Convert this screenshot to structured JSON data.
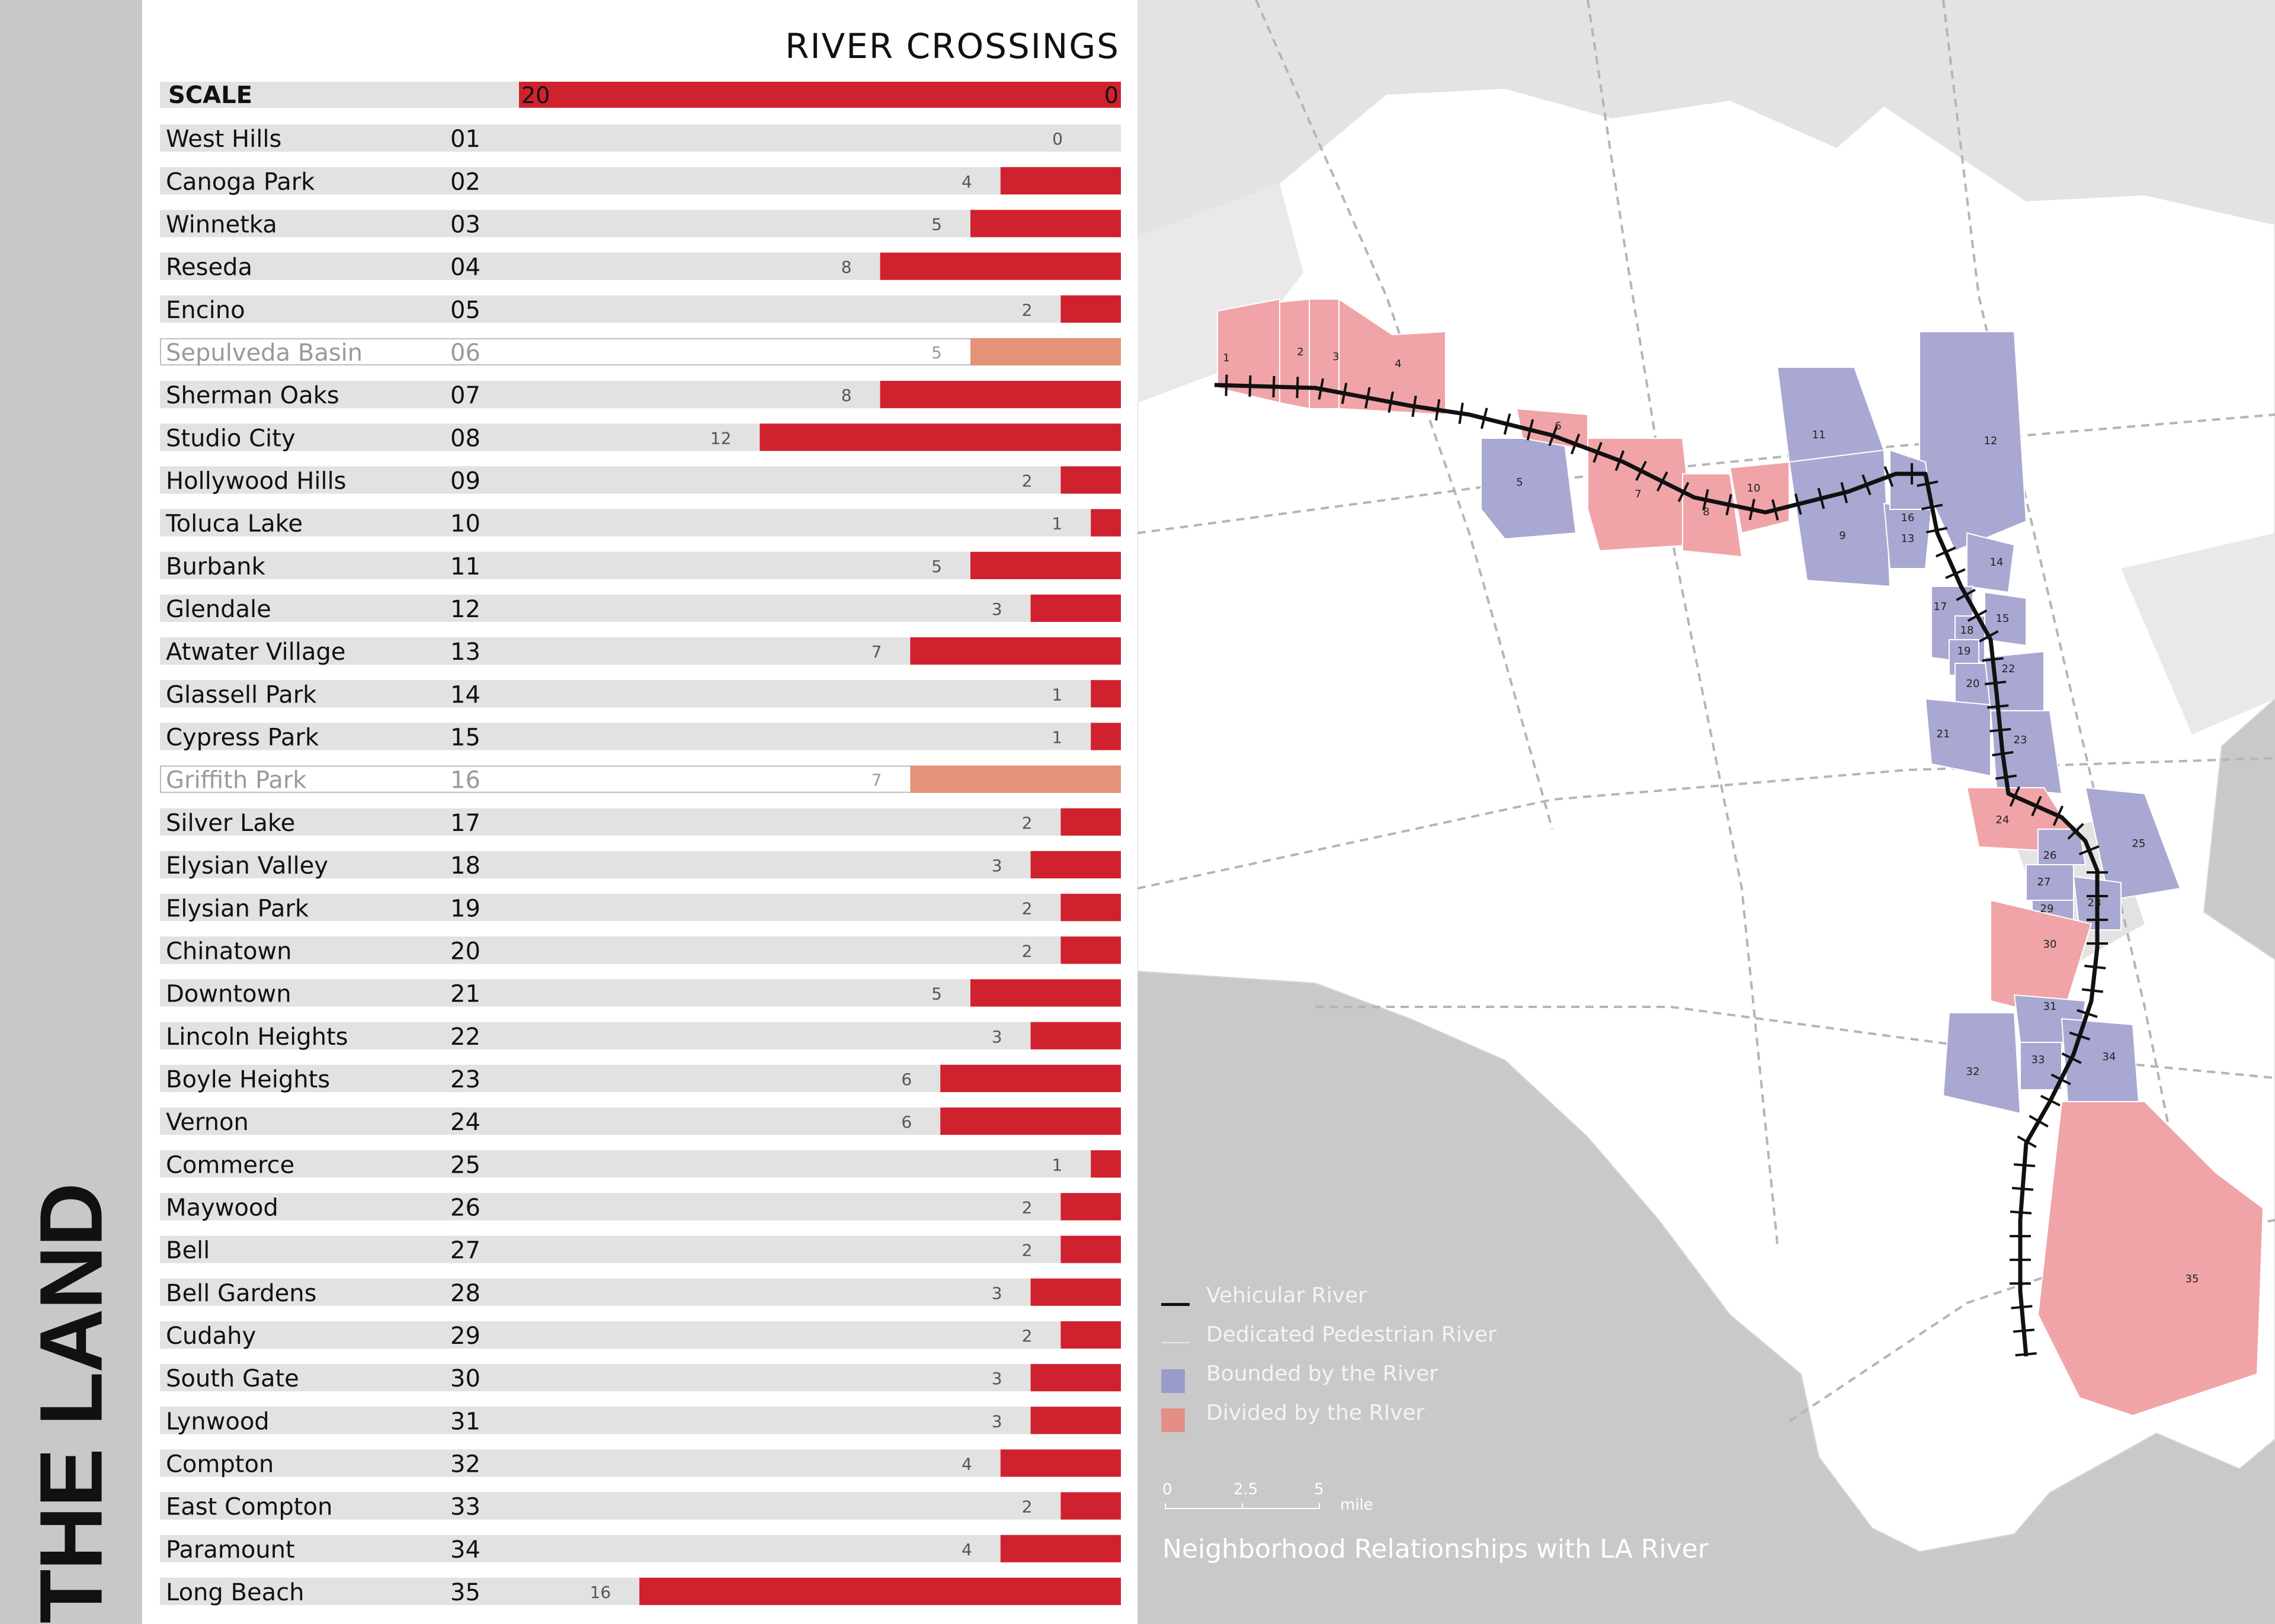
{
  "page": {
    "side_title": "THE LAND"
  },
  "chart_data": {
    "type": "bar",
    "title": "RIVER CROSSINGS",
    "scale": {
      "label": "SCALE",
      "from": "20",
      "to": "0",
      "max": 20
    },
    "categories": [
      "West Hills",
      "Canoga Park",
      "Winnetka",
      "Reseda",
      "Encino",
      "Sepulveda Basin",
      "Sherman Oaks",
      "Studio City",
      "Hollywood Hills",
      "Toluca Lake",
      "Burbank",
      "Glendale",
      "Atwater Village",
      "Glassell Park",
      "Cypress Park",
      "Griffith Park",
      "Silver Lake",
      "Elysian Valley",
      "Elysian Park",
      "Chinatown",
      "Downtown",
      "Lincoln Heights",
      "Boyle Heights",
      "Vernon",
      "Commerce",
      "Maywood",
      "Bell",
      "Bell Gardens",
      "Cudahy",
      "South Gate",
      "Lynwood",
      "Compton",
      "East Compton",
      "Paramount",
      "Long Beach"
    ],
    "ids": [
      "01",
      "02",
      "03",
      "04",
      "05",
      "06",
      "07",
      "08",
      "09",
      "10",
      "11",
      "12",
      "13",
      "14",
      "15",
      "16",
      "17",
      "18",
      "19",
      "20",
      "21",
      "22",
      "23",
      "24",
      "25",
      "26",
      "27",
      "28",
      "29",
      "30",
      "31",
      "32",
      "33",
      "34",
      "35"
    ],
    "values": [
      0,
      4,
      5,
      8,
      2,
      5,
      8,
      12,
      2,
      1,
      5,
      3,
      7,
      1,
      1,
      7,
      2,
      3,
      2,
      2,
      5,
      3,
      6,
      6,
      1,
      2,
      2,
      3,
      2,
      3,
      3,
      4,
      2,
      4,
      16
    ],
    "park_rows": [
      "06",
      "16"
    ],
    "colors": {
      "bar": "#d0212e",
      "park_bar": "#e49378",
      "row_bg": "#e2e2e2",
      "text": "#111111",
      "park_text": "#9a9a9a"
    }
  },
  "map": {
    "legend": [
      {
        "type": "line",
        "label": "Vehicular River",
        "color": "#111111"
      },
      {
        "type": "thin-line",
        "label": "Dedicated Pedestrian River",
        "color": "#e7e7e7"
      },
      {
        "type": "swatch",
        "label": "Bounded by the River",
        "color": "#9a9bc8"
      },
      {
        "type": "swatch",
        "label": "Divided by the RIver",
        "color": "#e38f86"
      }
    ],
    "scale_ticks": [
      "0",
      "2.5",
      "5"
    ],
    "scale_unit": "mile",
    "caption": "Neighborhood Relationships with LA River",
    "colors": {
      "bounded": "#a9a8d2",
      "divided": "#f0a4a8",
      "land": "#ffffff",
      "water": "#c9c9c9",
      "river": "#111111"
    },
    "neighborhoods": [
      {
        "n": "1",
        "kind": "divided"
      },
      {
        "n": "2",
        "kind": "divided"
      },
      {
        "n": "3",
        "kind": "divided"
      },
      {
        "n": "4",
        "kind": "divided"
      },
      {
        "n": "5",
        "kind": "bounded"
      },
      {
        "n": "6",
        "kind": "divided"
      },
      {
        "n": "7",
        "kind": "divided"
      },
      {
        "n": "8",
        "kind": "divided"
      },
      {
        "n": "9",
        "kind": "bounded"
      },
      {
        "n": "10",
        "kind": "divided"
      },
      {
        "n": "11",
        "kind": "bounded"
      },
      {
        "n": "12",
        "kind": "bounded"
      },
      {
        "n": "13",
        "kind": "bounded"
      },
      {
        "n": "14",
        "kind": "bounded"
      },
      {
        "n": "15",
        "kind": "bounded"
      },
      {
        "n": "16",
        "kind": "bounded"
      },
      {
        "n": "17",
        "kind": "bounded"
      },
      {
        "n": "18",
        "kind": "bounded"
      },
      {
        "n": "19",
        "kind": "bounded"
      },
      {
        "n": "20",
        "kind": "bounded"
      },
      {
        "n": "21",
        "kind": "bounded"
      },
      {
        "n": "22",
        "kind": "bounded"
      },
      {
        "n": "23",
        "kind": "bounded"
      },
      {
        "n": "24",
        "kind": "divided"
      },
      {
        "n": "25",
        "kind": "bounded"
      },
      {
        "n": "26",
        "kind": "bounded"
      },
      {
        "n": "27",
        "kind": "bounded"
      },
      {
        "n": "28",
        "kind": "bounded"
      },
      {
        "n": "29",
        "kind": "bounded"
      },
      {
        "n": "30",
        "kind": "divided"
      },
      {
        "n": "31",
        "kind": "bounded"
      },
      {
        "n": "32",
        "kind": "bounded"
      },
      {
        "n": "33",
        "kind": "bounded"
      },
      {
        "n": "34",
        "kind": "bounded"
      },
      {
        "n": "35",
        "kind": "divided"
      }
    ]
  }
}
